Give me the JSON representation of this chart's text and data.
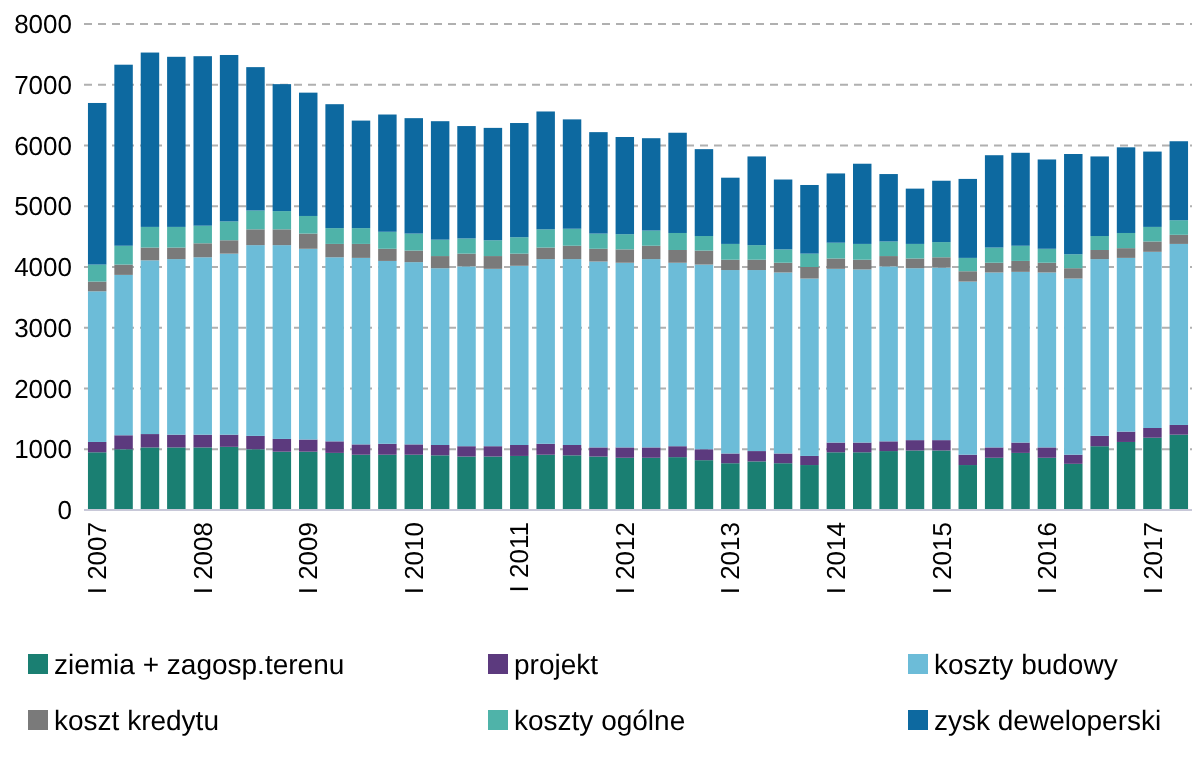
{
  "chart_data": {
    "type": "bar",
    "stacked": true,
    "categories": [
      "I 2007",
      null,
      null,
      null,
      "I 2008",
      null,
      null,
      null,
      "I 2009",
      null,
      null,
      null,
      "I 2010",
      null,
      null,
      null,
      "I 2011",
      null,
      null,
      null,
      "I 2012",
      null,
      null,
      null,
      "I 2013",
      null,
      null,
      null,
      "I 2014",
      null,
      null,
      null,
      "I 2015",
      null,
      null,
      null,
      "I 2016",
      null,
      null,
      null,
      "I 2017",
      null
    ],
    "series": [
      {
        "name": "ziemia + zagosp.terenu",
        "color": "#1a7f72",
        "values": [
          950,
          1000,
          1030,
          1030,
          1030,
          1040,
          1000,
          960,
          960,
          940,
          910,
          910,
          910,
          900,
          880,
          880,
          890,
          910,
          900,
          880,
          860,
          860,
          870,
          820,
          770,
          800,
          770,
          740,
          950,
          950,
          970,
          980,
          980,
          740,
          860,
          940,
          860,
          760,
          1050,
          1120,
          1190,
          1240
        ]
      },
      {
        "name": "projekt",
        "color": "#5c3a7e",
        "values": [
          170,
          230,
          220,
          210,
          210,
          200,
          220,
          210,
          200,
          190,
          170,
          180,
          170,
          170,
          170,
          170,
          180,
          180,
          170,
          150,
          170,
          170,
          180,
          180,
          160,
          170,
          160,
          150,
          160,
          160,
          160,
          170,
          170,
          170,
          170,
          170,
          170,
          150,
          170,
          170,
          160,
          160
        ]
      },
      {
        "name": "koszty budowy",
        "color": "#6cbcd8",
        "values": [
          2480,
          2640,
          2860,
          2890,
          2920,
          2980,
          3140,
          3190,
          3140,
          3030,
          3070,
          3010,
          3000,
          2910,
          2960,
          2920,
          2950,
          3040,
          3060,
          3060,
          3040,
          3100,
          3020,
          3040,
          3020,
          2980,
          2980,
          2920,
          2860,
          2850,
          2880,
          2830,
          2840,
          2850,
          2880,
          2810,
          2880,
          2900,
          2910,
          2860,
          2900,
          2980
        ]
      },
      {
        "name": "koszt kredytu",
        "color": "#7a7a7a",
        "values": [
          160,
          170,
          210,
          190,
          230,
          220,
          260,
          260,
          250,
          220,
          230,
          200,
          190,
          200,
          210,
          210,
          200,
          190,
          220,
          210,
          220,
          220,
          210,
          230,
          170,
          170,
          160,
          190,
          170,
          160,
          170,
          160,
          170,
          170,
          160,
          180,
          160,
          170,
          150,
          160,
          170,
          150
        ]
      },
      {
        "name": "koszty ogólne",
        "color": "#4fb3a9",
        "values": [
          280,
          310,
          340,
          340,
          290,
          310,
          310,
          300,
          290,
          260,
          260,
          280,
          280,
          270,
          250,
          260,
          270,
          300,
          280,
          250,
          250,
          250,
          280,
          240,
          260,
          240,
          220,
          220,
          260,
          260,
          240,
          240,
          250,
          220,
          250,
          250,
          230,
          230,
          230,
          250,
          240,
          240
        ]
      },
      {
        "name": "zysk deweloperski",
        "color": "#0d69a0",
        "values": [
          2660,
          2980,
          2870,
          2800,
          2790,
          2740,
          2360,
          2090,
          2030,
          2040,
          1770,
          1930,
          1900,
          1950,
          1850,
          1850,
          1880,
          1940,
          1800,
          1670,
          1600,
          1520,
          1650,
          1430,
          1090,
          1460,
          1150,
          1130,
          1140,
          1320,
          1110,
          910,
          1010,
          1300,
          1520,
          1530,
          1470,
          1650,
          1310,
          1410,
          1240,
          1300
        ]
      }
    ],
    "ylim": [
      0,
      8000
    ],
    "yticks": [
      0,
      1000,
      2000,
      3000,
      4000,
      5000,
      6000,
      7000,
      8000
    ],
    "grid": "y",
    "legend": "bottom"
  }
}
